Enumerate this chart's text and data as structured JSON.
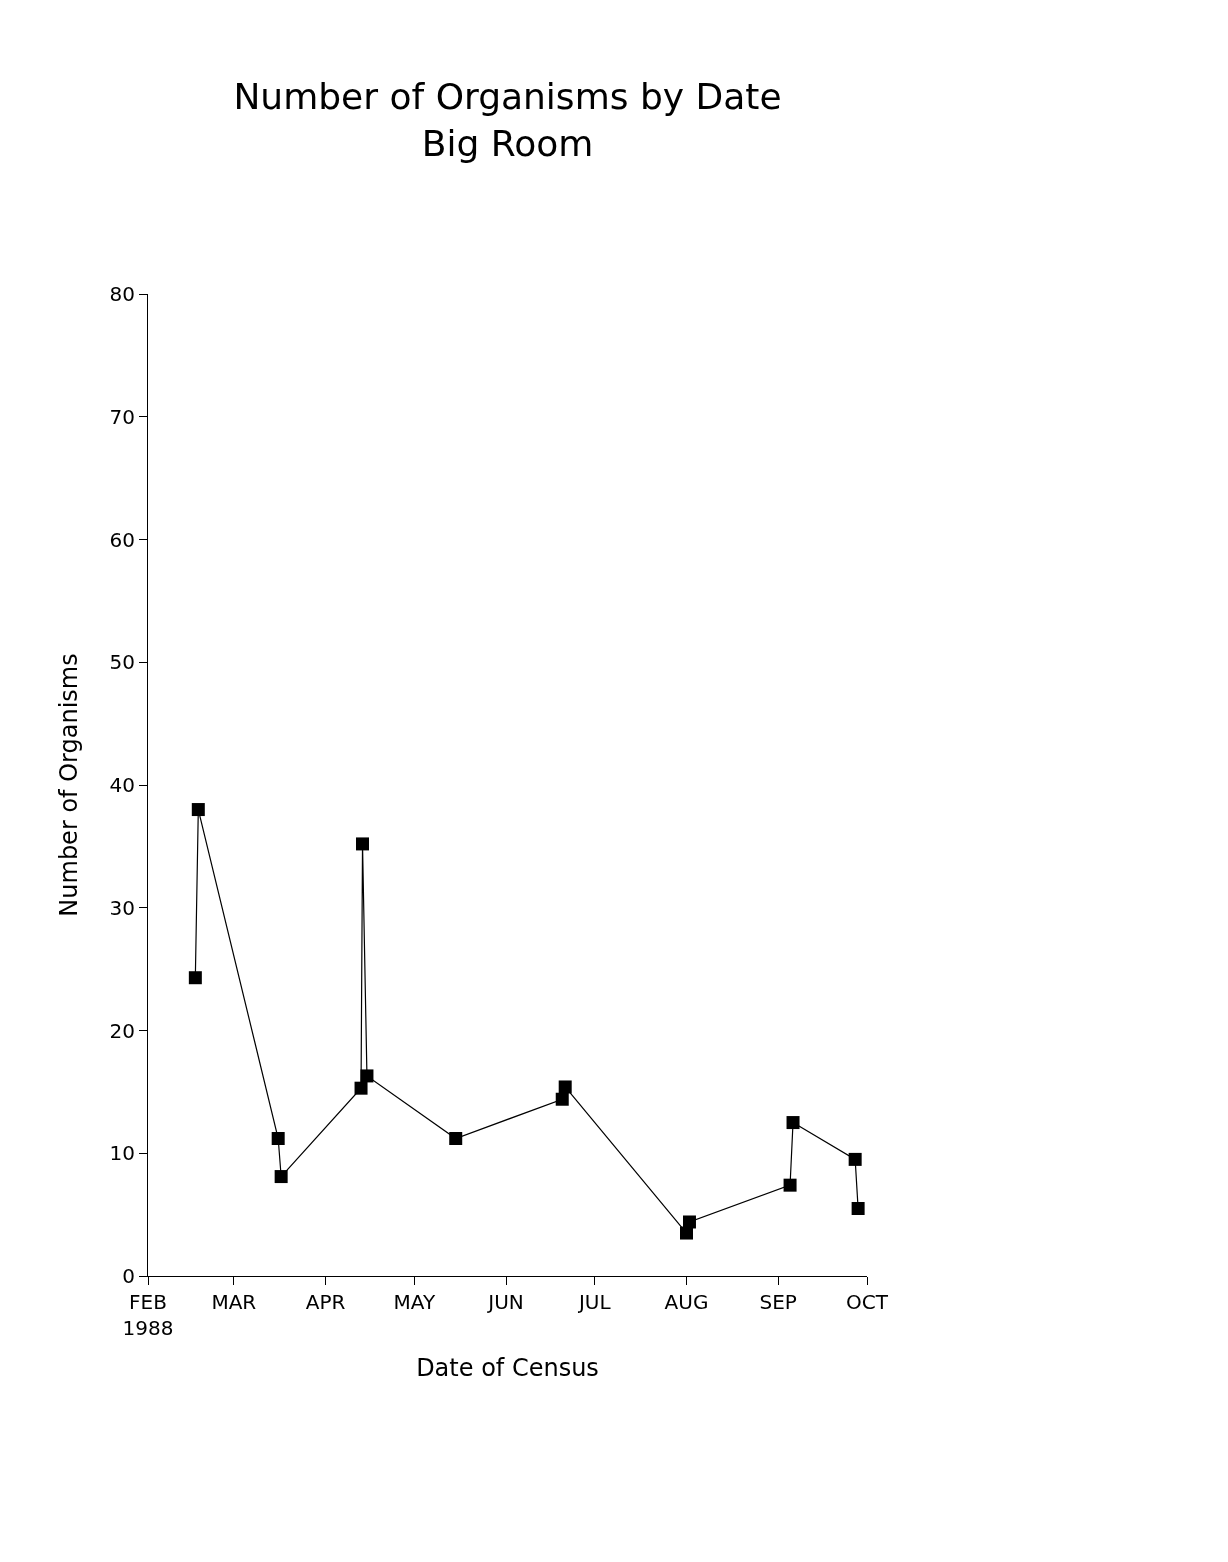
{
  "chart_data": {
    "type": "line",
    "title": "Number of Organisms by Date\nBig Room",
    "xlabel": "Date of Census",
    "ylabel": "Number of Organisms",
    "x": [
      "1988-02-17",
      "1988-02-18",
      "1988-03-16",
      "1988-03-17",
      "1988-04-13",
      "1988-04-13T12:00",
      "1988-04-15",
      "1988-05-15",
      "1988-06-20",
      "1988-06-21",
      "1988-08-01",
      "1988-08-02",
      "1988-09-05",
      "1988-09-06",
      "1988-09-27",
      "1988-09-28"
    ],
    "series": [
      {
        "color": "#000000",
        "values": [
          24.3,
          38.0,
          11.2,
          8.1,
          15.3,
          35.2,
          16.3,
          11.2,
          14.4,
          15.4,
          3.5,
          4.4,
          7.4,
          12.5,
          9.5,
          5.5
        ]
      }
    ],
    "xlim": [
      "1988-02-01",
      "1988-10-01"
    ],
    "xticks": [
      {
        "value": "1988-02-01",
        "label": "FEB\n1988"
      },
      {
        "value": "1988-03-01",
        "label": "MAR"
      },
      {
        "value": "1988-04-01",
        "label": "APR"
      },
      {
        "value": "1988-05-01",
        "label": "MAY"
      },
      {
        "value": "1988-06-01",
        "label": "JUN"
      },
      {
        "value": "1988-07-01",
        "label": "JUL"
      },
      {
        "value": "1988-08-01",
        "label": "AUG"
      },
      {
        "value": "1988-09-01",
        "label": "SEP"
      },
      {
        "value": "1988-10-01",
        "label": "OCT"
      }
    ],
    "ylim": [
      0,
      80
    ],
    "yticks": [
      0,
      10,
      20,
      30,
      40,
      50,
      60,
      70,
      80
    ],
    "marker": "square",
    "line_style": "solid"
  }
}
